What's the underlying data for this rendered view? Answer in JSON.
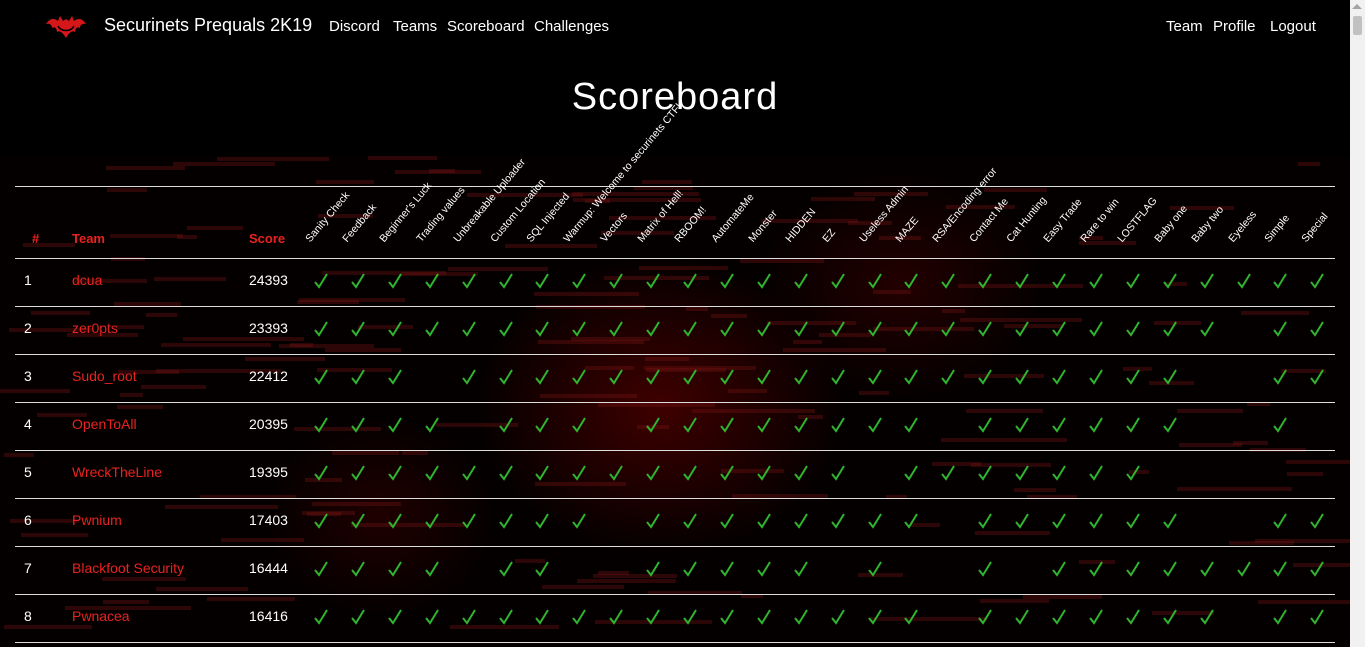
{
  "navbar": {
    "brand": "Securinets Prequals 2K19",
    "left_links": [
      "Discord",
      "Teams",
      "Scoreboard",
      "Challenges"
    ],
    "right_links": [
      "Team",
      "Profile",
      "Logout"
    ]
  },
  "page": {
    "title": "Scoreboard"
  },
  "table": {
    "headers": {
      "rank": "#",
      "team": "Team",
      "score": "Score"
    },
    "challenges": [
      "Sanity Check",
      "Feedback",
      "Beginner's Luck",
      "Trading values",
      "Unbreakable Uploader",
      "Custom Location",
      "SQL Injected",
      "Warmup: Welcome to securinets CTF!",
      "Vectors",
      "Matrix of Hell!",
      "RBOOM!",
      "AutomateMe",
      "Monster",
      "HIDDEN",
      "EZ",
      "Useless Admin",
      "MAZE",
      "RSA/Encoding error",
      "Contact Me",
      "Cat Hunting",
      "Easy Trade",
      "Rare to win",
      "LOSTFLAG",
      "Baby one",
      "Baby two",
      "Eyeless",
      "Simple",
      "Special"
    ],
    "rows": [
      {
        "rank": "1",
        "team": "dcua",
        "score": "24393",
        "solves": [
          1,
          1,
          1,
          1,
          1,
          1,
          1,
          1,
          1,
          1,
          1,
          1,
          1,
          1,
          1,
          1,
          1,
          1,
          1,
          1,
          1,
          1,
          1,
          1,
          1,
          1,
          1,
          1
        ]
      },
      {
        "rank": "2",
        "team": "zer0pts",
        "score": "23393",
        "solves": [
          1,
          1,
          1,
          1,
          1,
          1,
          1,
          1,
          1,
          1,
          1,
          1,
          1,
          1,
          1,
          1,
          1,
          1,
          1,
          1,
          1,
          1,
          1,
          1,
          1,
          0,
          1,
          1
        ]
      },
      {
        "rank": "3",
        "team": "Sudo_root",
        "score": "22412",
        "solves": [
          1,
          1,
          1,
          0,
          1,
          1,
          1,
          1,
          1,
          1,
          1,
          1,
          1,
          1,
          1,
          1,
          1,
          1,
          1,
          1,
          1,
          1,
          1,
          1,
          0,
          0,
          1,
          1
        ]
      },
      {
        "rank": "4",
        "team": "OpenToAll",
        "score": "20395",
        "solves": [
          1,
          1,
          1,
          1,
          0,
          1,
          1,
          1,
          0,
          1,
          1,
          1,
          1,
          1,
          1,
          1,
          1,
          0,
          1,
          1,
          1,
          1,
          1,
          1,
          0,
          0,
          1,
          0
        ]
      },
      {
        "rank": "5",
        "team": "WreckTheLine",
        "score": "19395",
        "solves": [
          1,
          1,
          1,
          1,
          1,
          1,
          1,
          1,
          1,
          1,
          1,
          1,
          1,
          1,
          1,
          0,
          1,
          1,
          1,
          1,
          1,
          1,
          1,
          0,
          0,
          0,
          0,
          0
        ]
      },
      {
        "rank": "6",
        "team": "Pwnium",
        "score": "17403",
        "solves": [
          1,
          1,
          1,
          1,
          1,
          1,
          1,
          1,
          0,
          1,
          1,
          1,
          1,
          1,
          1,
          1,
          1,
          0,
          1,
          1,
          1,
          1,
          1,
          1,
          0,
          0,
          1,
          1
        ]
      },
      {
        "rank": "7",
        "team": "Blackfoot Security",
        "score": "16444",
        "solves": [
          1,
          1,
          1,
          1,
          0,
          1,
          1,
          0,
          0,
          1,
          1,
          1,
          1,
          1,
          0,
          1,
          0,
          0,
          1,
          0,
          1,
          1,
          1,
          1,
          1,
          1,
          1,
          1
        ]
      },
      {
        "rank": "8",
        "team": "Pwnacea",
        "score": "16416",
        "solves": [
          1,
          1,
          1,
          1,
          1,
          1,
          1,
          1,
          1,
          1,
          1,
          1,
          1,
          1,
          1,
          1,
          1,
          0,
          1,
          1,
          1,
          1,
          1,
          1,
          1,
          0,
          1,
          1
        ]
      }
    ]
  },
  "colors": {
    "accent": "#e8231f",
    "check": "#2fb52f",
    "background": "#000000"
  },
  "icons": {
    "logo": "bat-logo-icon",
    "solved": "checkmark-icon"
  }
}
